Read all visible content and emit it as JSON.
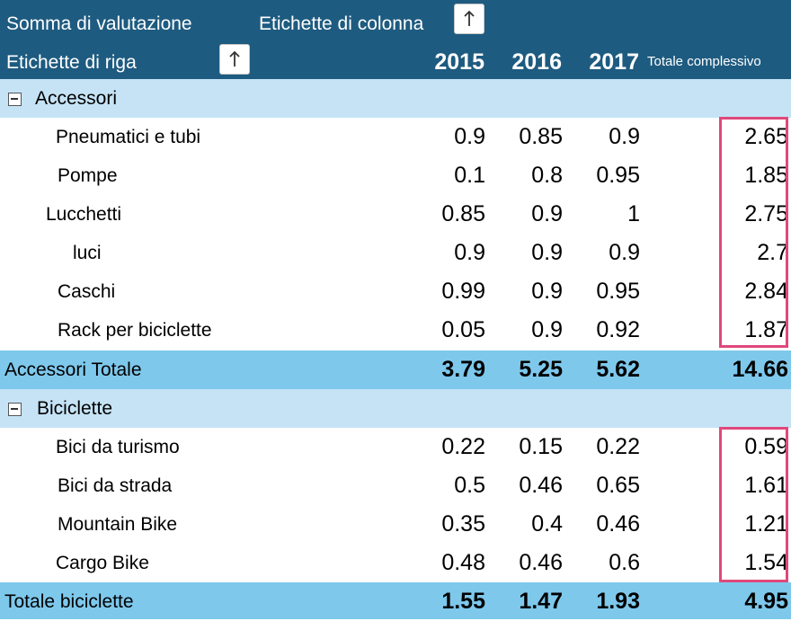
{
  "header": {
    "values_label": "Somma di valutazione",
    "column_labels": "Etichette di colonna",
    "row_labels": "Etichette di riga",
    "years": [
      "2015",
      "2016",
      "2017"
    ],
    "grand_total_label": "Totale complessivo"
  },
  "groups": [
    {
      "name": "Accessori",
      "items": [
        {
          "label": "Pneumatici e tubi",
          "v2015": "0.9",
          "v2016": "0.85",
          "v2017": "0.9",
          "total": "2.65"
        },
        {
          "label": "Pompe",
          "v2015": "0.1",
          "v2016": "0.8",
          "v2017": "0.95",
          "total": "1.85"
        },
        {
          "label": "Lucchetti",
          "v2015": "0.85",
          "v2016": "0.9",
          "v2017": "1",
          "total": "2.75"
        },
        {
          "label": "luci",
          "v2015": "0.9",
          "v2016": "0.9",
          "v2017": "0.9",
          "total": "2.7"
        },
        {
          "label": "Caschi",
          "v2015": "0.99",
          "v2016": "0.9",
          "v2017": "0.95",
          "total": "2.84"
        },
        {
          "label": "Rack per biciclette",
          "v2015": "0.05",
          "v2016": "0.9",
          "v2017": "0.92",
          "total": "1.87"
        }
      ],
      "subtotal": {
        "label": "Accessori Totale",
        "v2015": "3.79",
        "v2016": "5.25",
        "v2017": "5.62",
        "total": "14.66"
      }
    },
    {
      "name": "Biciclette",
      "items": [
        {
          "label": "Bici da turismo",
          "v2015": "0.22",
          "v2016": "0.15",
          "v2017": "0.22",
          "total": "0.59"
        },
        {
          "label": "Bici da strada",
          "v2015": "0.5",
          "v2016": "0.46",
          "v2017": "0.65",
          "total": "1.61"
        },
        {
          "label": "Mountain Bike",
          "v2015": "0.35",
          "v2016": "0.4",
          "v2017": "0.46",
          "total": "1.21"
        },
        {
          "label": "Cargo Bike",
          "v2015": "0.48",
          "v2016": "0.46",
          "v2017": "0.6",
          "total": "1.54"
        }
      ],
      "subtotal": {
        "label": "Totale biciclette",
        "v2015": "1.55",
        "v2016": "1.47",
        "v2017": "1.93",
        "total": "4.95"
      }
    }
  ],
  "colors": {
    "header_bg": "#1e5b80",
    "group_row_bg": "#c5e3f5",
    "total_row_bg": "#7ec8ec",
    "highlight_border": "#e0487c"
  }
}
